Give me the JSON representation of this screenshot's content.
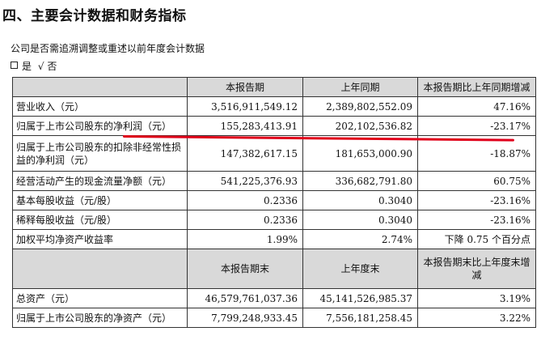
{
  "heading": "四、主要会计数据和财务指标",
  "question": "公司是否需追溯调整或重述以前年度会计数据",
  "answer": {
    "yes": "是",
    "check": "√",
    "no": "否"
  },
  "table1": {
    "headers": [
      "",
      "本报告期",
      "上年同期",
      "本报告期比上年同期增减"
    ],
    "rows": [
      {
        "label": "营业收入（元）",
        "current": "3,516,911,549.12",
        "prior": "2,389,802,552.09",
        "change": "47.16%"
      },
      {
        "label": "归属于上市公司股东的净利润（元）",
        "current": "155,283,413.91",
        "prior": "202,102,536.82",
        "change": "-23.17%"
      },
      {
        "label": "归属于上市公司股东的扣除非经常性损益的净利润（元）",
        "current": "147,382,617.15",
        "prior": "181,653,000.90",
        "change": "-18.87%"
      },
      {
        "label": "经营活动产生的现金流量净额（元）",
        "current": "541,225,376.93",
        "prior": "336,682,791.80",
        "change": "60.75%"
      },
      {
        "label": "基本每股收益（元/股）",
        "current": "0.2336",
        "prior": "0.3040",
        "change": "-23.16%"
      },
      {
        "label": "稀释每股收益（元/股）",
        "current": "0.2336",
        "prior": "0.3040",
        "change": "-23.16%"
      },
      {
        "label": "加权平均净资产收益率",
        "current": "1.99%",
        "prior": "2.74%",
        "change": "下降 0.75 个百分点"
      }
    ]
  },
  "table2": {
    "headers": [
      "",
      "本报告期末",
      "上年度末",
      "本报告期末比上年度末增减"
    ],
    "rows": [
      {
        "label": "总资产（元）",
        "current": "46,579,761,037.36",
        "prior": "45,141,526,985.37",
        "change": "3.19%"
      },
      {
        "label": "归属于上市公司股东的净资产（元）",
        "current": "7,799,248,933.45",
        "prior": "7,556,181,258.45",
        "change": "3.22%"
      }
    ]
  },
  "annotation": {
    "color": "#e0001a"
  }
}
